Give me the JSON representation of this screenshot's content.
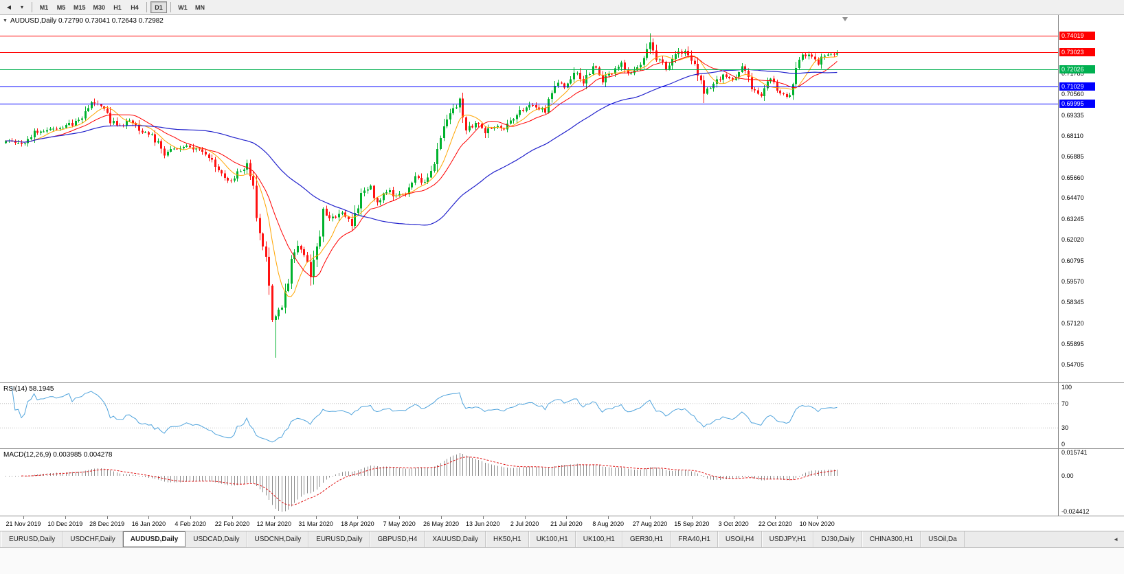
{
  "toolbar": {
    "timeframes": [
      {
        "label": "M1",
        "active": false
      },
      {
        "label": "M5",
        "active": false
      },
      {
        "label": "M15",
        "active": false
      },
      {
        "label": "M30",
        "active": false
      },
      {
        "label": "H1",
        "active": false
      },
      {
        "label": "H4",
        "active": false
      },
      {
        "label": "D1",
        "active": true
      },
      {
        "label": "W1",
        "active": false
      },
      {
        "label": "MN",
        "active": false
      }
    ]
  },
  "colors": {
    "bull": "#00B22D",
    "bear": "#FF1212",
    "axis_border": "#808080",
    "rsi_line": "#4FA3DC",
    "rsi_level": "#C4C4C4",
    "macd_bar": "#8C8C8C",
    "macd_signal": "#E01010"
  },
  "chart_data": {
    "type": "candlestick",
    "symbol": "AUDUSD",
    "timeframe": "Daily",
    "title": "AUDUSD,Daily 0.72790 0.73041 0.72643 0.72982",
    "ohlc": {
      "open": "0.72790",
      "high": "0.73041",
      "low": "0.72643",
      "close": "0.72982"
    },
    "x_tick_labels": [
      "21 Nov 2019",
      "10 Dec 2019",
      "28 Dec 2019",
      "16 Jan 2020",
      "4 Feb 2020",
      "22 Feb 2020",
      "12 Mar 2020",
      "31 Mar 2020",
      "18 Apr 2020",
      "7 May 2020",
      "26 May 2020",
      "13 Jun 2020",
      "2 Jul 2020",
      "21 Jul 2020",
      "8 Aug 2020",
      "27 Aug 2020",
      "15 Sep 2020",
      "3 Oct 2020",
      "22 Oct 2020",
      "10 Nov 2020"
    ],
    "y_axis_labels": [
      "0.71785",
      "0.70560",
      "0.69335",
      "0.68110",
      "0.66885",
      "0.65660",
      "0.64470",
      "0.63245",
      "0.62020",
      "0.60795",
      "0.59570",
      "0.58345",
      "0.57120",
      "0.55895",
      "0.54705"
    ],
    "price_range": {
      "top": 0.7505,
      "bottom": 0.538
    },
    "horizontal_lines": [
      {
        "price": 0.74019,
        "label": "0.74019",
        "color": "#FF0000"
      },
      {
        "price": 0.73023,
        "label": "0.73023",
        "color": "#FF0000"
      },
      {
        "price": 0.72026,
        "label": "0.72026",
        "color": "#00B050"
      },
      {
        "price": 0.71029,
        "label": "0.71029",
        "color": "#0000FF"
      },
      {
        "price": 0.69995,
        "label": "0.69995",
        "color": "#0000FF"
      }
    ],
    "moving_averages": [
      {
        "name": "ma-fast",
        "period": 8,
        "color": "#FFA500",
        "width": 1
      },
      {
        "name": "ma-mid",
        "period": 16,
        "color": "#FF0000",
        "width": 1
      },
      {
        "name": "ma-slow",
        "period": 55,
        "color": "#2222CC",
        "width": 1.2
      }
    ],
    "candle_count": 263,
    "close_anchors": [
      [
        0,
        0.679
      ],
      [
        3,
        0.6768
      ],
      [
        6,
        0.678
      ],
      [
        9,
        0.6838
      ],
      [
        12,
        0.6825
      ],
      [
        15,
        0.6862
      ],
      [
        18,
        0.6855
      ],
      [
        21,
        0.6885
      ],
      [
        24,
        0.692
      ],
      [
        27,
        0.6995
      ],
      [
        28,
        0.702
      ],
      [
        30,
        0.6985
      ],
      [
        33,
        0.69
      ],
      [
        36,
        0.6875
      ],
      [
        39,
        0.6905
      ],
      [
        42,
        0.6845
      ],
      [
        45,
        0.683
      ],
      [
        48,
        0.677
      ],
      [
        50,
        0.6715
      ],
      [
        53,
        0.673
      ],
      [
        56,
        0.675
      ],
      [
        59,
        0.6738
      ],
      [
        62,
        0.6712
      ],
      [
        65,
        0.666
      ],
      [
        68,
        0.66
      ],
      [
        70,
        0.654
      ],
      [
        73,
        0.6595
      ],
      [
        76,
        0.664
      ],
      [
        78,
        0.65
      ],
      [
        80,
        0.623
      ],
      [
        82,
        0.612
      ],
      [
        84,
        0.579
      ],
      [
        85,
        0.5745
      ],
      [
        87,
        0.582
      ],
      [
        89,
        0.595
      ],
      [
        91,
        0.617
      ],
      [
        93,
        0.614
      ],
      [
        95,
        0.606
      ],
      [
        96,
        0.599
      ],
      [
        98,
        0.616
      ],
      [
        100,
        0.635
      ],
      [
        103,
        0.6335
      ],
      [
        106,
        0.635
      ],
      [
        109,
        0.629
      ],
      [
        112,
        0.646
      ],
      [
        115,
        0.651
      ],
      [
        117,
        0.6425
      ],
      [
        120,
        0.649
      ],
      [
        123,
        0.6455
      ],
      [
        126,
        0.648
      ],
      [
        129,
        0.6565
      ],
      [
        132,
        0.654
      ],
      [
        135,
        0.664
      ],
      [
        138,
        0.689
      ],
      [
        141,
        0.697
      ],
      [
        143,
        0.7015
      ],
      [
        145,
        0.6855
      ],
      [
        148,
        0.6885
      ],
      [
        151,
        0.6835
      ],
      [
        154,
        0.687
      ],
      [
        157,
        0.686
      ],
      [
        160,
        0.692
      ],
      [
        164,
        0.6985
      ],
      [
        167,
        0.698
      ],
      [
        170,
        0.696
      ],
      [
        173,
        0.713
      ],
      [
        176,
        0.7105
      ],
      [
        179,
        0.719
      ],
      [
        182,
        0.7125
      ],
      [
        185,
        0.723
      ],
      [
        188,
        0.7145
      ],
      [
        191,
        0.7175
      ],
      [
        194,
        0.7235
      ],
      [
        197,
        0.7165
      ],
      [
        200,
        0.7245
      ],
      [
        203,
        0.7375
      ],
      [
        205,
        0.7275
      ],
      [
        208,
        0.7215
      ],
      [
        211,
        0.7285
      ],
      [
        214,
        0.7315
      ],
      [
        217,
        0.7225
      ],
      [
        220,
        0.7055
      ],
      [
        223,
        0.7135
      ],
      [
        226,
        0.7165
      ],
      [
        229,
        0.7145
      ],
      [
        232,
        0.7215
      ],
      [
        235,
        0.7095
      ],
      [
        238,
        0.7055
      ],
      [
        241,
        0.7145
      ],
      [
        244,
        0.7045
      ],
      [
        247,
        0.7055
      ],
      [
        250,
        0.7285
      ],
      [
        253,
        0.7285
      ],
      [
        256,
        0.7245
      ],
      [
        259,
        0.7305
      ],
      [
        262,
        0.7298
      ]
    ],
    "spikes": [
      {
        "i": 28,
        "high": 0.7032
      },
      {
        "i": 85,
        "low": 0.551
      },
      {
        "i": 144,
        "high": 0.7065
      },
      {
        "i": 203,
        "high": 0.7414
      },
      {
        "i": 220,
        "low": 0.7006
      }
    ],
    "indicators": {
      "rsi": {
        "label": "RSI(14) 58.1945",
        "period": 14,
        "value": 58.1945,
        "axis_labels": [
          "100",
          "70",
          "30",
          "0"
        ],
        "level_lines": [
          70,
          30
        ],
        "range": [
          0,
          100
        ]
      },
      "macd": {
        "label": "MACD(12,26,9) 0.003985 0.004278",
        "fast": 12,
        "slow": 26,
        "signal": 9,
        "value_main": 0.003985,
        "value_signal": 0.004278,
        "axis_labels": [
          "0.015741",
          "0.00",
          "-0.024412"
        ],
        "scale_max": 0.015741,
        "scale_min": -0.024412
      }
    }
  },
  "tabs": [
    {
      "label": "EURUSD,Daily",
      "active": false
    },
    {
      "label": "USDCHF,Daily",
      "active": false
    },
    {
      "label": "AUDUSD,Daily",
      "active": true
    },
    {
      "label": "USDCAD,Daily",
      "active": false
    },
    {
      "label": "USDCNH,Daily",
      "active": false
    },
    {
      "label": "EURUSD,Daily",
      "active": false
    },
    {
      "label": "GBPUSD,H4",
      "active": false
    },
    {
      "label": "XAUUSD,Daily",
      "active": false
    },
    {
      "label": "HK50,H1",
      "active": false
    },
    {
      "label": "UK100,H1",
      "active": false
    },
    {
      "label": "UK100,H1",
      "active": false
    },
    {
      "label": "GER30,H1",
      "active": false
    },
    {
      "label": "FRA40,H1",
      "active": false
    },
    {
      "label": "USOil,H4",
      "active": false
    },
    {
      "label": "USDJPY,H1",
      "active": false
    },
    {
      "label": "DJ30,Daily",
      "active": false
    },
    {
      "label": "CHINA300,H1",
      "active": false
    },
    {
      "label": "USOil,Da",
      "active": false
    }
  ]
}
